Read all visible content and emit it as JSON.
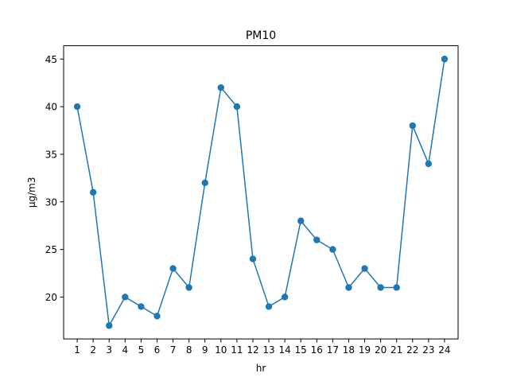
{
  "chart_data": {
    "type": "line",
    "title": "PM10",
    "xlabel": "hr",
    "ylabel": "µg/m3",
    "x": [
      1,
      2,
      3,
      4,
      5,
      6,
      7,
      8,
      9,
      10,
      11,
      12,
      13,
      14,
      15,
      16,
      17,
      18,
      19,
      20,
      21,
      22,
      23,
      24
    ],
    "xticks": [
      "1",
      "2",
      "3",
      "4",
      "5",
      "6",
      "7",
      "8",
      "9",
      "10",
      "11",
      "12",
      "13",
      "14",
      "15",
      "16",
      "17",
      "18",
      "19",
      "20",
      "21",
      "22",
      "23",
      "24"
    ],
    "series": [
      {
        "values": [
          40,
          31,
          17,
          20,
          19,
          18,
          23,
          21,
          32,
          42,
          40,
          24,
          19,
          20,
          28,
          26,
          25,
          21,
          23,
          21,
          21,
          38,
          34,
          45
        ],
        "color": "#1f77b4",
        "marker": "circle"
      }
    ],
    "yticks": [
      20,
      25,
      30,
      35,
      40,
      45
    ],
    "ylim": [
      15.6,
      46.4
    ],
    "xlim": [
      0.15,
      24.85
    ],
    "grid": false,
    "legend": "none"
  }
}
